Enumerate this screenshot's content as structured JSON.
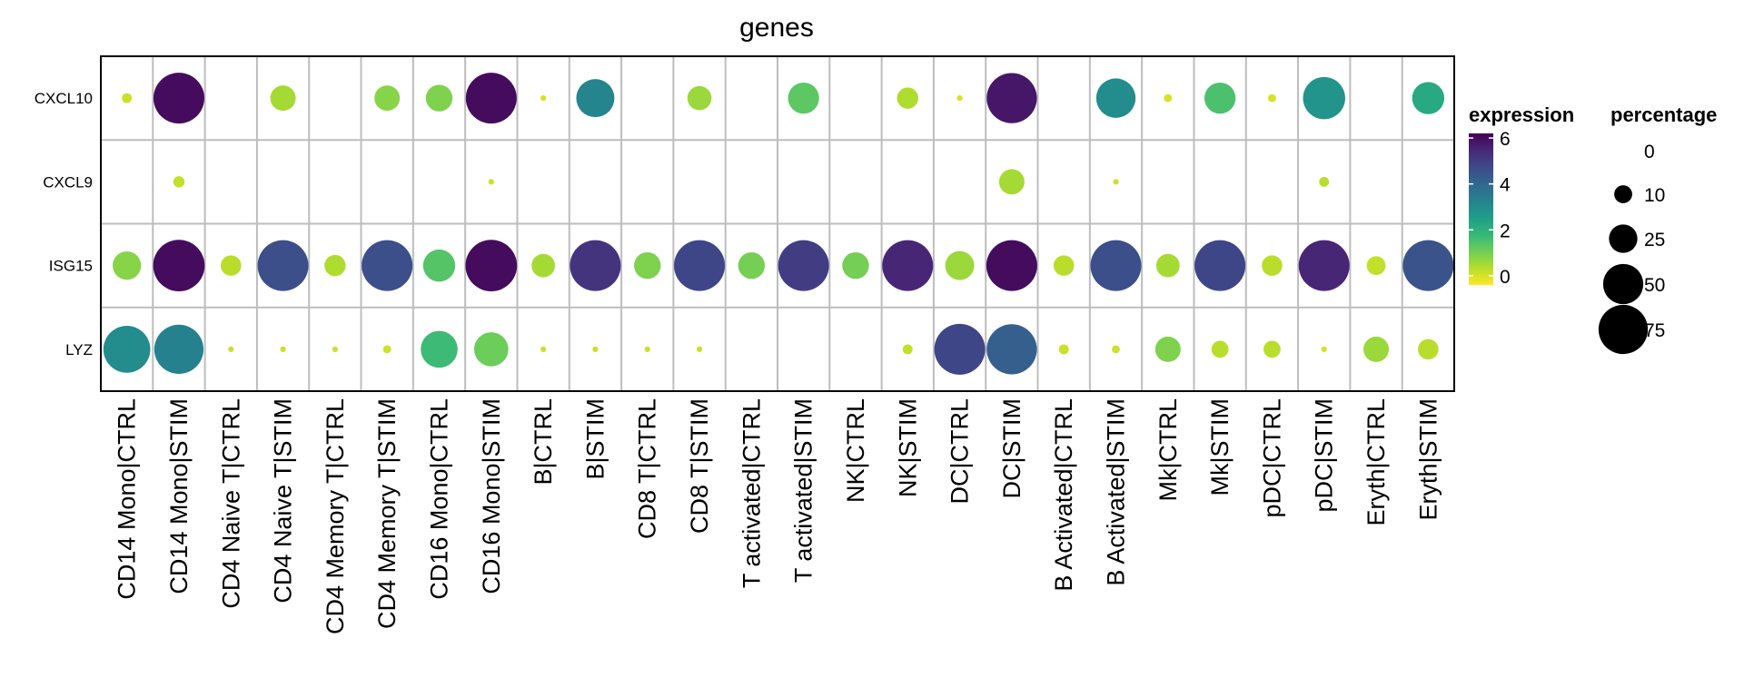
{
  "chart_data": {
    "type": "dot-heatmap",
    "title": "genes",
    "rows": [
      "CXCL10",
      "CXCL9",
      "ISG15",
      "LYZ"
    ],
    "columns": [
      "CD14 Mono|CTRL",
      "CD14 Mono|STIM",
      "CD4 Naive T|CTRL",
      "CD4 Naive T|STIM",
      "CD4 Memory T|CTRL",
      "CD4 Memory T|STIM",
      "CD16 Mono|CTRL",
      "CD16 Mono|STIM",
      "B|CTRL",
      "B|STIM",
      "CD8 T|CTRL",
      "CD8 T|STIM",
      "T activated|CTRL",
      "T activated|STIM",
      "NK|CTRL",
      "NK|STIM",
      "DC|CTRL",
      "DC|STIM",
      "B Activated|CTRL",
      "B Activated|STIM",
      "Mk|CTRL",
      "Mk|STIM",
      "pDC|CTRL",
      "pDC|STIM",
      "Eryth|CTRL",
      "Eryth|STIM"
    ],
    "expression": [
      [
        0.1,
        6.0,
        0.0,
        0.5,
        0.0,
        0.8,
        0.9,
        6.0,
        0.0,
        3.2,
        0.0,
        0.6,
        0.0,
        1.3,
        0.0,
        0.4,
        0.0,
        5.8,
        0.0,
        3.0,
        0.0,
        1.5,
        0.0,
        2.8,
        0.0,
        2.2
      ],
      [
        0.0,
        0.2,
        0.0,
        0.0,
        0.0,
        0.0,
        0.0,
        0.1,
        0.0,
        0.1,
        0.0,
        0.0,
        0.0,
        0.0,
        0.0,
        0.0,
        0.0,
        0.5,
        0.0,
        0.1,
        0.0,
        0.1,
        0.0,
        0.3,
        0.0,
        0.0
      ],
      [
        0.8,
        6.0,
        0.3,
        4.6,
        0.4,
        4.6,
        1.4,
        6.0,
        0.5,
        5.2,
        0.9,
        4.8,
        1.0,
        5.0,
        1.0,
        5.5,
        0.6,
        6.0,
        0.3,
        4.6,
        0.5,
        4.8,
        0.3,
        5.5,
        0.2,
        4.5
      ],
      [
        3.0,
        3.3,
        0.1,
        0.1,
        0.1,
        0.1,
        1.7,
        1.1,
        0.1,
        0.1,
        0.1,
        0.1,
        0.1,
        0.0,
        0.0,
        0.2,
        4.8,
        4.2,
        0.1,
        0.1,
        0.9,
        0.3,
        0.3,
        0.0,
        0.6,
        0.3
      ]
    ],
    "percentage": [
      [
        3,
        80,
        0,
        20,
        0,
        20,
        22,
        80,
        1,
        45,
        0,
        18,
        0,
        30,
        0,
        14,
        1,
        78,
        0,
        48,
        2,
        30,
        2,
        55,
        0,
        32
      ],
      [
        0,
        4,
        0,
        0,
        0,
        0,
        0,
        1,
        0,
        0,
        0,
        0,
        0,
        0,
        0,
        0,
        0,
        20,
        0,
        1,
        0,
        0,
        0,
        3,
        0,
        0
      ],
      [
        25,
        82,
        13,
        80,
        14,
        80,
        32,
        82,
        17,
        80,
        22,
        80,
        22,
        80,
        22,
        80,
        26,
        80,
        13,
        80,
        17,
        80,
        13,
        80,
        11,
        80
      ],
      [
        68,
        75,
        1,
        1,
        1,
        2,
        42,
        36,
        1,
        1,
        1,
        1,
        0,
        0,
        0,
        3,
        80,
        78,
        3,
        2,
        20,
        9,
        9,
        1,
        20,
        13
      ]
    ],
    "color_legend": {
      "title": "expression",
      "ticks": [
        0,
        2,
        4,
        6
      ],
      "range": [
        -0.4,
        6.2
      ],
      "colors": [
        "#FDE725",
        "#B5DE2B",
        "#6ECE58",
        "#35B779",
        "#1F9E89",
        "#26828E",
        "#31688E",
        "#3E4989",
        "#482878",
        "#440154"
      ]
    },
    "size_legend": {
      "title": "percentage",
      "values": [
        0,
        10,
        25,
        50,
        75
      ]
    }
  }
}
